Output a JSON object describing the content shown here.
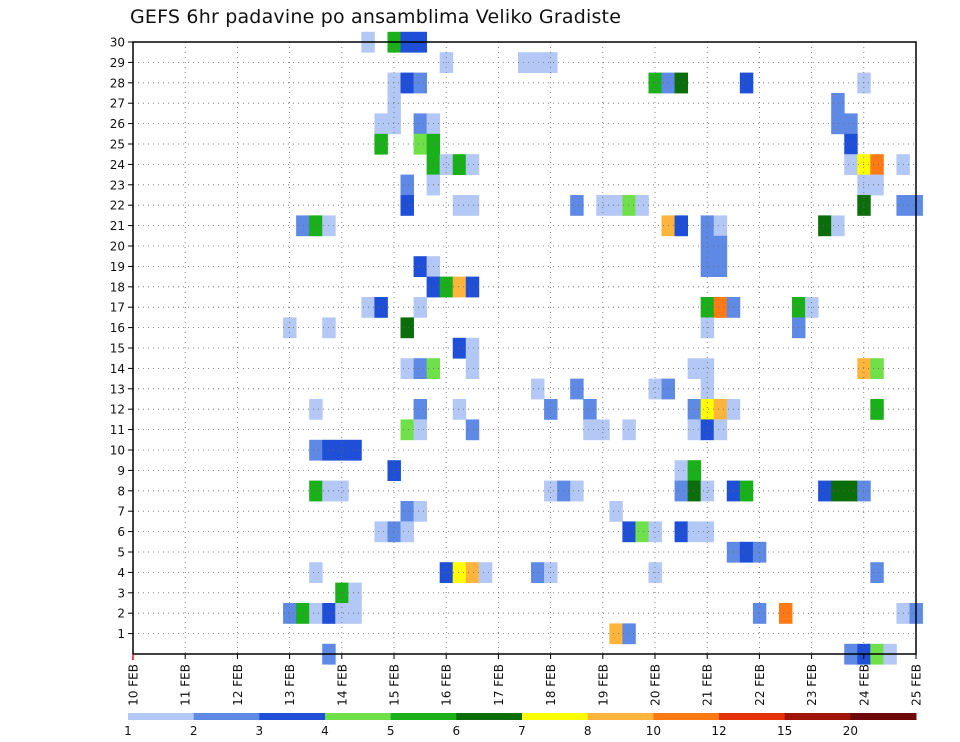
{
  "chart_data": {
    "type": "heatmap",
    "title": "GEFS 6hr padavine po ansamblima Veliko Gradiste",
    "xlabel": "",
    "ylabel": "",
    "x_axis": {
      "unit": "days from 10 FEB",
      "range": [
        0,
        15
      ],
      "ticks": [
        0,
        1,
        2,
        3,
        4,
        5,
        6,
        7,
        8,
        9,
        10,
        11,
        12,
        13,
        14,
        15
      ],
      "tick_labels": [
        "10 FEB",
        "11 FEB",
        "12 FEB",
        "13 FEB",
        "14 FEB",
        "15 FEB",
        "16 FEB",
        "17 FEB",
        "18 FEB",
        "19 FEB",
        "20 FEB",
        "21 FEB",
        "22 FEB",
        "23 FEB",
        "24 FEB",
        "25 FEB"
      ],
      "step_hours": 6
    },
    "y_axis": {
      "range": [
        0,
        30
      ],
      "ticks": [
        1,
        2,
        3,
        4,
        5,
        6,
        7,
        8,
        9,
        10,
        11,
        12,
        13,
        14,
        15,
        16,
        17,
        18,
        19,
        20,
        21,
        22,
        23,
        24,
        25,
        26,
        27,
        28,
        29,
        30
      ],
      "tick_labels": [
        "1",
        "2",
        "3",
        "4",
        "5",
        "6",
        "7",
        "8",
        "9",
        "10",
        "11",
        "12",
        "13",
        "14",
        "15",
        "16",
        "17",
        "18",
        "19",
        "20",
        "21",
        "22",
        "23",
        "24",
        "25",
        "26",
        "27",
        "28",
        "29",
        "30"
      ]
    },
    "grid": true,
    "legend": {
      "placement": "bottom",
      "colors": [
        "#b4c8f5",
        "#5e8ae6",
        "#1f4fd6",
        "#6fe04a",
        "#19b019",
        "#0b6e0b",
        "#ffff00",
        "#ffb43c",
        "#ff7a14",
        "#e6320a",
        "#a0140a",
        "#6e0a0a"
      ],
      "labels": [
        "1",
        "2",
        "3",
        "4",
        "5",
        "6",
        "7",
        "8",
        "10",
        "12",
        "15",
        "20"
      ]
    },
    "cells": [
      [
        30,
        4.5,
        1
      ],
      [
        30,
        5,
        5
      ],
      [
        30,
        5.25,
        3
      ],
      [
        30,
        5.5,
        3
      ],
      [
        29,
        6,
        1
      ],
      [
        29,
        7.5,
        1
      ],
      [
        29,
        7.75,
        1
      ],
      [
        29,
        8,
        1
      ],
      [
        28,
        5,
        1
      ],
      [
        28,
        5.25,
        3
      ],
      [
        28,
        5.5,
        2
      ],
      [
        28,
        10,
        5
      ],
      [
        28,
        10.25,
        2
      ],
      [
        28,
        10.5,
        6
      ],
      [
        28,
        11.75,
        3
      ],
      [
        28,
        14,
        1
      ],
      [
        27,
        5,
        1
      ],
      [
        27,
        13.5,
        2
      ],
      [
        26,
        4.75,
        1
      ],
      [
        26,
        5,
        1
      ],
      [
        26,
        5.5,
        2
      ],
      [
        26,
        5.75,
        1
      ],
      [
        26,
        13.5,
        2
      ],
      [
        26,
        13.75,
        2
      ],
      [
        25,
        4.75,
        5
      ],
      [
        25,
        5.5,
        4
      ],
      [
        25,
        5.75,
        5
      ],
      [
        25,
        13.75,
        3
      ],
      [
        24,
        5.75,
        5
      ],
      [
        24,
        6,
        1
      ],
      [
        24,
        6.25,
        5
      ],
      [
        24,
        6.5,
        1
      ],
      [
        24,
        13.75,
        1
      ],
      [
        24,
        14,
        7
      ],
      [
        24,
        14.25,
        9
      ],
      [
        24,
        14.75,
        1
      ],
      [
        23,
        5.25,
        2
      ],
      [
        23,
        5.75,
        1
      ],
      [
        23,
        14,
        1
      ],
      [
        23,
        14.25,
        1
      ],
      [
        22,
        5.25,
        3
      ],
      [
        22,
        6.25,
        1
      ],
      [
        22,
        6.5,
        1
      ],
      [
        22,
        8.5,
        2
      ],
      [
        22,
        9,
        1
      ],
      [
        22,
        9.25,
        1
      ],
      [
        22,
        9.5,
        4
      ],
      [
        22,
        9.75,
        1
      ],
      [
        22,
        14,
        6
      ],
      [
        22,
        14.75,
        2
      ],
      [
        22,
        15,
        2
      ],
      [
        21,
        3.25,
        2
      ],
      [
        21,
        3.5,
        5
      ],
      [
        21,
        3.75,
        1
      ],
      [
        21,
        10.25,
        8
      ],
      [
        21,
        10.5,
        3
      ],
      [
        21,
        11,
        2
      ],
      [
        21,
        11.25,
        1
      ],
      [
        21,
        13.25,
        6
      ],
      [
        21,
        13.5,
        1
      ],
      [
        20,
        11,
        2
      ],
      [
        20,
        11.25,
        2
      ],
      [
        19,
        5.5,
        3
      ],
      [
        19,
        5.75,
        1
      ],
      [
        19,
        11,
        2
      ],
      [
        19,
        11.25,
        2
      ],
      [
        18,
        5.75,
        3
      ],
      [
        18,
        6,
        5
      ],
      [
        18,
        6.25,
        8
      ],
      [
        18,
        6.5,
        3
      ],
      [
        17,
        4.5,
        1
      ],
      [
        17,
        4.75,
        3
      ],
      [
        17,
        5.5,
        1
      ],
      [
        17,
        11,
        5
      ],
      [
        17,
        11.25,
        9
      ],
      [
        17,
        11.5,
        2
      ],
      [
        17,
        12.75,
        5
      ],
      [
        17,
        13,
        1
      ],
      [
        16,
        3,
        1
      ],
      [
        16,
        3.75,
        1
      ],
      [
        16,
        5.25,
        6
      ],
      [
        16,
        11,
        1
      ],
      [
        16,
        12.75,
        2
      ],
      [
        15,
        6.25,
        3
      ],
      [
        15,
        6.5,
        1
      ],
      [
        14,
        5.25,
        1
      ],
      [
        14,
        5.5,
        2
      ],
      [
        14,
        5.75,
        4
      ],
      [
        14,
        6.5,
        1
      ],
      [
        14,
        10.75,
        1
      ],
      [
        14,
        11,
        1
      ],
      [
        14,
        14,
        8
      ],
      [
        14,
        14.25,
        4
      ],
      [
        13,
        7.75,
        1
      ],
      [
        13,
        8.5,
        2
      ],
      [
        13,
        10,
        1
      ],
      [
        13,
        10.25,
        2
      ],
      [
        13,
        11,
        1
      ],
      [
        12,
        3.5,
        1
      ],
      [
        12,
        5.5,
        2
      ],
      [
        12,
        6.25,
        1
      ],
      [
        12,
        8,
        2
      ],
      [
        12,
        8.75,
        2
      ],
      [
        12,
        10.75,
        2
      ],
      [
        12,
        11,
        7
      ],
      [
        12,
        11.25,
        8
      ],
      [
        12,
        11.5,
        1
      ],
      [
        12,
        14.25,
        5
      ],
      [
        11,
        5.25,
        4
      ],
      [
        11,
        5.5,
        1
      ],
      [
        11,
        6.5,
        2
      ],
      [
        11,
        8.75,
        1
      ],
      [
        11,
        9,
        1
      ],
      [
        11,
        9.5,
        1
      ],
      [
        11,
        10.75,
        1
      ],
      [
        11,
        11,
        3
      ],
      [
        11,
        11.25,
        1
      ],
      [
        10,
        3.5,
        2
      ],
      [
        10,
        3.75,
        3
      ],
      [
        10,
        4,
        3
      ],
      [
        10,
        4.25,
        3
      ],
      [
        9,
        5,
        3
      ],
      [
        9,
        10.5,
        1
      ],
      [
        9,
        10.75,
        5
      ],
      [
        8,
        3.5,
        5
      ],
      [
        8,
        3.75,
        1
      ],
      [
        8,
        4,
        1
      ],
      [
        8,
        8,
        1
      ],
      [
        8,
        8.25,
        2
      ],
      [
        8,
        8.5,
        1
      ],
      [
        8,
        10.5,
        2
      ],
      [
        8,
        10.75,
        6
      ],
      [
        8,
        11,
        1
      ],
      [
        8,
        11.5,
        3
      ],
      [
        8,
        11.75,
        5
      ],
      [
        8,
        13.25,
        3
      ],
      [
        8,
        13.5,
        6
      ],
      [
        8,
        13.75,
        6
      ],
      [
        8,
        14,
        2
      ],
      [
        7,
        5.25,
        2
      ],
      [
        7,
        5.5,
        1
      ],
      [
        7,
        9.25,
        1
      ],
      [
        6,
        4.75,
        1
      ],
      [
        6,
        5,
        2
      ],
      [
        6,
        5.25,
        1
      ],
      [
        6,
        9.5,
        3
      ],
      [
        6,
        9.75,
        4
      ],
      [
        6,
        10,
        1
      ],
      [
        6,
        10.5,
        3
      ],
      [
        6,
        10.75,
        1
      ],
      [
        6,
        11,
        1
      ],
      [
        5,
        11.5,
        2
      ],
      [
        5,
        11.75,
        3
      ],
      [
        5,
        12,
        2
      ],
      [
        4,
        3.5,
        1
      ],
      [
        4,
        6,
        3
      ],
      [
        4,
        6.25,
        7
      ],
      [
        4,
        6.5,
        8
      ],
      [
        4,
        6.75,
        1
      ],
      [
        4,
        7.75,
        2
      ],
      [
        4,
        8,
        1
      ],
      [
        4,
        10,
        1
      ],
      [
        4,
        14.25,
        2
      ],
      [
        3,
        4,
        5
      ],
      [
        3,
        4.25,
        1
      ],
      [
        2,
        3,
        2
      ],
      [
        2,
        3.25,
        5
      ],
      [
        2,
        3.5,
        1
      ],
      [
        2,
        3.75,
        3
      ],
      [
        2,
        4,
        1
      ],
      [
        2,
        4.25,
        1
      ],
      [
        2,
        12,
        2
      ],
      [
        2,
        12.5,
        9
      ],
      [
        2,
        14.75,
        1
      ],
      [
        2,
        15,
        2
      ],
      [
        1,
        9.25,
        8
      ],
      [
        1,
        9.5,
        2
      ],
      [
        0,
        3.75,
        2
      ],
      [
        0,
        13.75,
        2
      ],
      [
        0,
        14,
        3
      ],
      [
        0,
        14.25,
        4
      ],
      [
        0,
        14.5,
        1
      ]
    ]
  }
}
